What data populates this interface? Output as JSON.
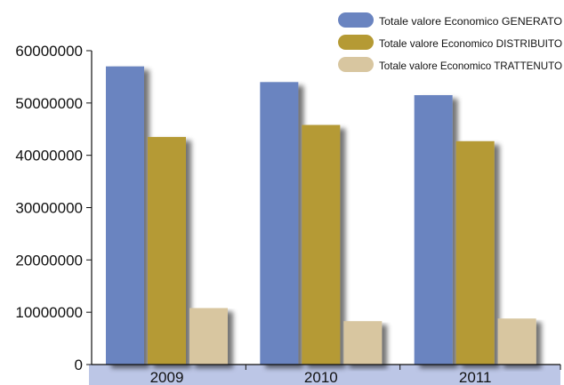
{
  "chart_data": {
    "type": "bar",
    "categories": [
      "2009",
      "2010",
      "2011"
    ],
    "series": [
      {
        "name": "Totale valore Economico GENERATO",
        "values": [
          57000000,
          54000000,
          51500000
        ]
      },
      {
        "name": "Totale valore Economico DISTRIBUITO",
        "values": [
          43500000,
          45800000,
          42700000
        ]
      },
      {
        "name": "Totale valore Economico TRATTENUTO",
        "values": [
          10800000,
          8300000,
          8800000
        ]
      }
    ],
    "yticks": [
      "0",
      "10000000",
      "20000000",
      "30000000",
      "40000000",
      "50000000",
      "60000000"
    ],
    "ylim": [
      0,
      60000000
    ],
    "legend_position": "top-right",
    "colors": [
      "#6a84c0",
      "#b59a34",
      "#d8c6a0"
    ],
    "category_band_color": "#bcc6e6",
    "grid": false
  }
}
